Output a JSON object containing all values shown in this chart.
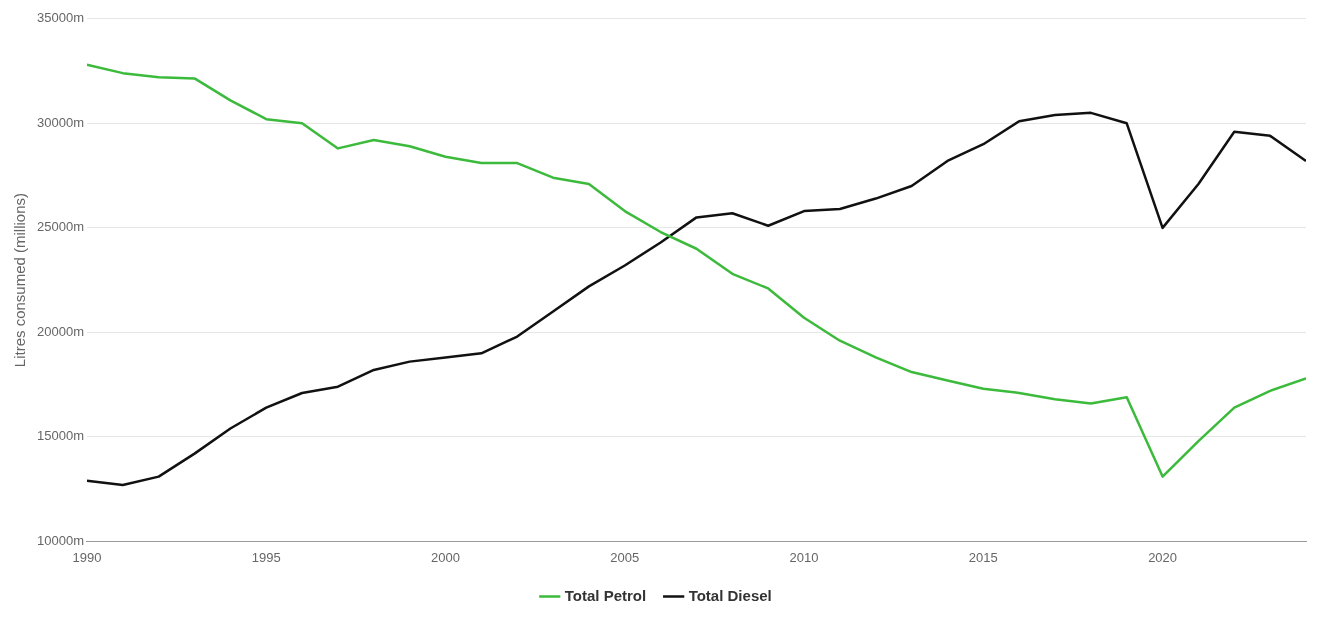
{
  "chart_data": {
    "type": "line",
    "ylabel": "Litres consumed (millions)",
    "x": [
      1990,
      1991,
      1992,
      1993,
      1994,
      1995,
      1996,
      1997,
      1998,
      1999,
      2000,
      2001,
      2002,
      2003,
      2004,
      2005,
      2006,
      2007,
      2008,
      2009,
      2010,
      2011,
      2012,
      2013,
      2014,
      2015,
      2016,
      2017,
      2018,
      2019,
      2020,
      2021,
      2022,
      2023,
      2024
    ],
    "series": [
      {
        "name": "Total Petrol",
        "color": "#3cba3c",
        "values": [
          32800,
          32400,
          32200,
          32150,
          31100,
          30200,
          30000,
          28800,
          29200,
          28900,
          28400,
          28100,
          28100,
          27400,
          27100,
          25800,
          24800,
          24000,
          22800,
          22100,
          20700,
          19600,
          18800,
          18100,
          17700,
          17300,
          17100,
          16800,
          16600,
          16900,
          13100,
          14800,
          16400,
          17200,
          17800
        ]
      },
      {
        "name": "Total Diesel",
        "color": "#111111",
        "values": [
          12900,
          12700,
          13100,
          14200,
          15400,
          16400,
          17100,
          17400,
          18200,
          18600,
          18800,
          19000,
          19800,
          21000,
          22200,
          23200,
          24300,
          25500,
          25700,
          25100,
          25800,
          25900,
          26400,
          27000,
          28200,
          29000,
          30100,
          30400,
          30500,
          30000,
          25000,
          27100,
          29600,
          29400,
          28200
        ]
      }
    ],
    "xlim": [
      1990,
      2024
    ],
    "xticks": [
      1990,
      1995,
      2000,
      2005,
      2010,
      2015,
      2020
    ],
    "ylim": [
      10000,
      35000
    ],
    "yticks": [
      {
        "value": 10000,
        "label": "10000m"
      },
      {
        "value": 15000,
        "label": "15000m"
      },
      {
        "value": 20000,
        "label": "20000m"
      },
      {
        "value": 25000,
        "label": "25000m"
      },
      {
        "value": 30000,
        "label": "30000m"
      },
      {
        "value": 35000,
        "label": "35000m"
      }
    ],
    "grid": "y",
    "legend": "bottom",
    "marker": "none",
    "line_style": "solid"
  }
}
